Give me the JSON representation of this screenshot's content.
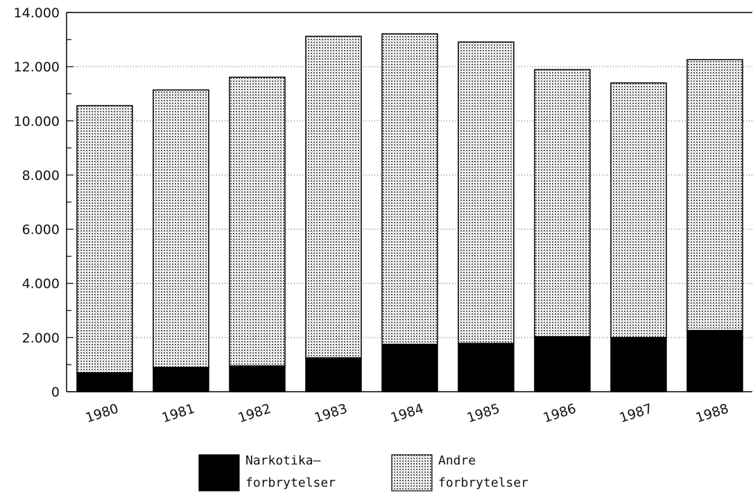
{
  "chart_data": {
    "type": "bar",
    "stacked": true,
    "categories": [
      "1980",
      "1981",
      "1982",
      "1983",
      "1984",
      "1985",
      "1986",
      "1987",
      "1988"
    ],
    "series": [
      {
        "name": "Narkotika– forbrytelser",
        "label_lines": [
          "Narkotika–",
          "forbrytelser"
        ],
        "values": [
          700,
          900,
          950,
          1250,
          1750,
          1780,
          2030,
          2000,
          2260
        ],
        "fill": "solid",
        "color": "#000000"
      },
      {
        "name": "Andre forbrytelser",
        "label_lines": [
          "Andre",
          "forbrytelser"
        ],
        "values": [
          9860,
          10240,
          10660,
          11870,
          11460,
          11130,
          9860,
          9400,
          10000
        ],
        "fill": "dotted",
        "color": "#bdbdbd"
      }
    ],
    "totals": [
      10560,
      11140,
      11610,
      13120,
      13210,
      12910,
      11890,
      11400,
      12260
    ],
    "ylim": [
      0,
      14000
    ],
    "yticks": [
      {
        "value": 0,
        "label": "0"
      },
      {
        "value": 2000,
        "label": "2.000"
      },
      {
        "value": 4000,
        "label": "4.000"
      },
      {
        "value": 6000,
        "label": "6.000"
      },
      {
        "value": 8000,
        "label": "8.000"
      },
      {
        "value": 10000,
        "label": "10.000"
      },
      {
        "value": 12000,
        "label": "12.000"
      },
      {
        "value": 14000,
        "label": "14.000"
      }
    ],
    "grid": "horizontal dotted",
    "legend_position": "bottom-center",
    "title": "",
    "xlabel": "",
    "ylabel": ""
  }
}
